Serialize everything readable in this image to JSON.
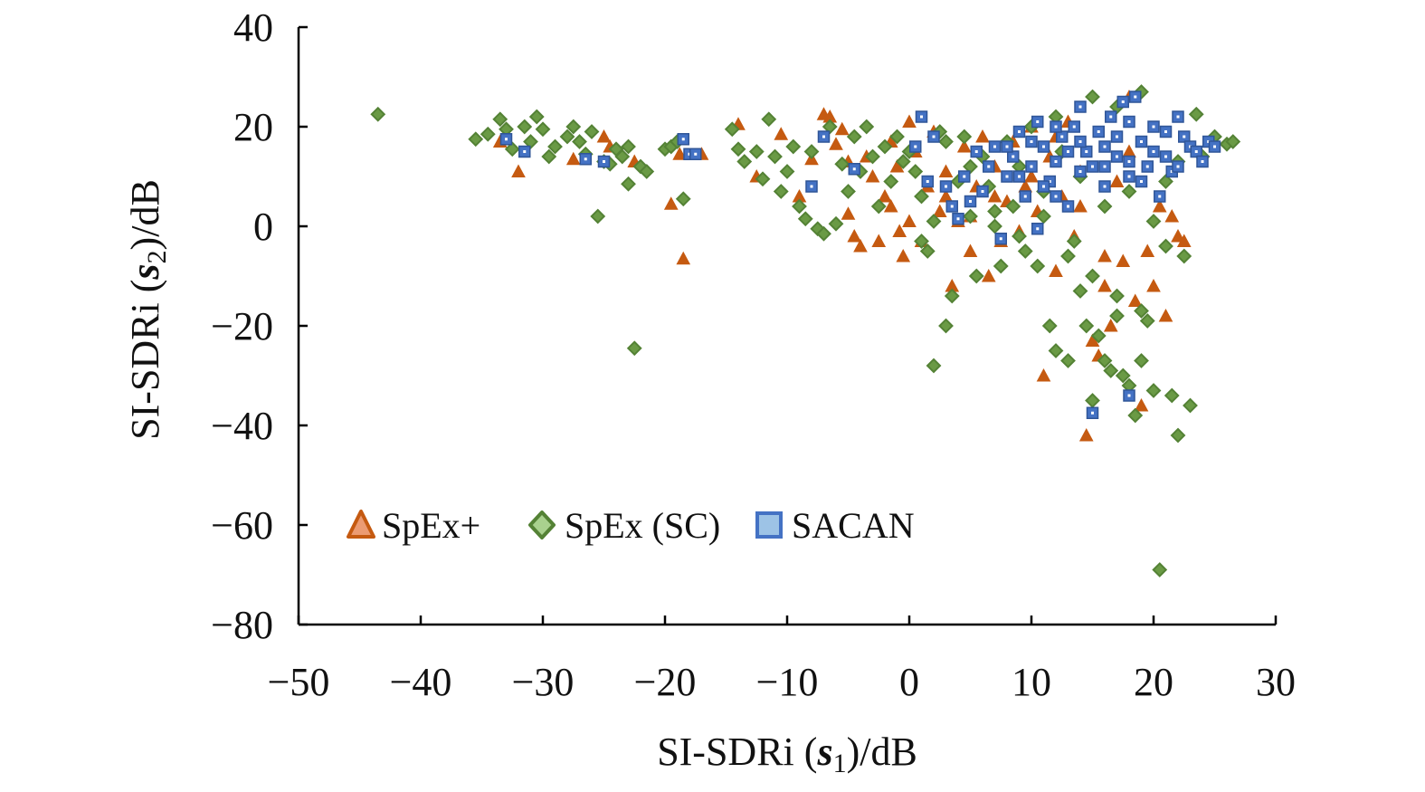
{
  "chart_data": {
    "type": "scatter",
    "xlabel": {
      "prefix": "SI-SDRi (",
      "var": "s",
      "sub": "1",
      "suffix": ")/dB"
    },
    "ylabel": {
      "prefix": "SI-SDRi (",
      "var": "s",
      "sub": "2",
      "suffix": ")/dB"
    },
    "xlim": [
      -50,
      30
    ],
    "ylim": [
      -80,
      40
    ],
    "xticks": [
      -50,
      -40,
      -30,
      -20,
      -10,
      0,
      10,
      20,
      30
    ],
    "yticks": [
      -80,
      -60,
      -40,
      -20,
      0,
      20,
      40
    ],
    "xtick_labels": [
      "−50",
      "−40",
      "−30",
      "−20",
      "−10",
      "0",
      "10",
      "20",
      "30"
    ],
    "ytick_labels": [
      "−80",
      "−60",
      "−40",
      "−20",
      "0",
      "20",
      "40"
    ],
    "grid": false,
    "legend_position": "lower-left",
    "series": [
      {
        "name": "SpEx+",
        "marker": "triangle",
        "color": "#c55a11",
        "points": [
          [
            -33.5,
            17
          ],
          [
            -32,
            11
          ],
          [
            -27.5,
            13.5
          ],
          [
            -25,
            18
          ],
          [
            -24.5,
            16
          ],
          [
            -22.5,
            13
          ],
          [
            -19.5,
            4.5
          ],
          [
            -18.8,
            14.5
          ],
          [
            -18.5,
            -6.5
          ],
          [
            -17,
            14.5
          ],
          [
            -14,
            20.5
          ],
          [
            -12.5,
            10
          ],
          [
            -10.5,
            18.5
          ],
          [
            -9,
            6
          ],
          [
            -8,
            13.5
          ],
          [
            -7,
            22.5
          ],
          [
            -6.5,
            22
          ],
          [
            -6,
            16.5
          ],
          [
            -5.5,
            19.5
          ],
          [
            -5,
            13
          ],
          [
            -5,
            2.5
          ],
          [
            -4.5,
            -2
          ],
          [
            -4,
            -4
          ],
          [
            -3.5,
            14
          ],
          [
            -3,
            10
          ],
          [
            -2.5,
            -3
          ],
          [
            -2,
            6
          ],
          [
            -1.5,
            17
          ],
          [
            -1.5,
            4
          ],
          [
            -1,
            12
          ],
          [
            -0.8,
            -1
          ],
          [
            -0.5,
            -6
          ],
          [
            0,
            21
          ],
          [
            0,
            1
          ],
          [
            0.5,
            15
          ],
          [
            1,
            -3
          ],
          [
            1.5,
            8
          ],
          [
            2,
            19
          ],
          [
            2.5,
            3
          ],
          [
            3,
            11
          ],
          [
            3.5,
            -12
          ],
          [
            4,
            1
          ],
          [
            4.5,
            16
          ],
          [
            5,
            -5
          ],
          [
            5.5,
            8
          ],
          [
            6,
            18
          ],
          [
            6.5,
            -10
          ],
          [
            7,
            12
          ],
          [
            7.5,
            -3
          ],
          [
            8,
            5
          ],
          [
            8.5,
            17
          ],
          [
            9,
            -1
          ],
          [
            9.5,
            8
          ],
          [
            10,
            20
          ],
          [
            10.5,
            3
          ],
          [
            11,
            -30
          ],
          [
            11.5,
            14
          ],
          [
            12,
            -9
          ],
          [
            12.5,
            6
          ],
          [
            13,
            21
          ],
          [
            13.5,
            -2
          ],
          [
            14,
            11
          ],
          [
            14.5,
            -42
          ],
          [
            15,
            -23
          ],
          [
            15.5,
            -26
          ],
          [
            16,
            -12
          ],
          [
            16.5,
            -20
          ],
          [
            17,
            9
          ],
          [
            17.5,
            -7
          ],
          [
            18,
            26
          ],
          [
            18.5,
            -15
          ],
          [
            19,
            -36
          ],
          [
            19.5,
            -5
          ],
          [
            20,
            -12
          ],
          [
            20.5,
            4
          ],
          [
            21,
            -18
          ],
          [
            21.5,
            2
          ],
          [
            22,
            -2
          ],
          [
            22.5,
            -3
          ],
          [
            16,
            -6
          ],
          [
            18,
            15
          ],
          [
            12,
            18
          ],
          [
            14,
            4
          ],
          [
            10,
            10
          ],
          [
            7,
            6
          ],
          [
            3,
            6
          ],
          [
            5,
            2
          ]
        ]
      },
      {
        "name": "SpEx (SC)",
        "marker": "diamond",
        "color": "#548235",
        "points": [
          [
            -43.5,
            22.5
          ],
          [
            -35.5,
            17.5
          ],
          [
            -34.5,
            18.5
          ],
          [
            -33.5,
            21.5
          ],
          [
            -33,
            19.5
          ],
          [
            -32.5,
            15.5
          ],
          [
            -31.5,
            20
          ],
          [
            -31,
            17
          ],
          [
            -30.5,
            22
          ],
          [
            -30,
            19.5
          ],
          [
            -29.5,
            14
          ],
          [
            -29,
            16
          ],
          [
            -28,
            18
          ],
          [
            -27.5,
            20
          ],
          [
            -27,
            17
          ],
          [
            -26.5,
            14.5
          ],
          [
            -26,
            19
          ],
          [
            -25.5,
            2
          ],
          [
            -25,
            13
          ],
          [
            -24.5,
            12.5
          ],
          [
            -24,
            15.5
          ],
          [
            -23.5,
            14
          ],
          [
            -23,
            16
          ],
          [
            -23,
            8.5
          ],
          [
            -22.5,
            -24.5
          ],
          [
            -22,
            12
          ],
          [
            -21.5,
            11
          ],
          [
            -20,
            15.5
          ],
          [
            -19.5,
            16
          ],
          [
            -19,
            17
          ],
          [
            -18.5,
            5.5
          ],
          [
            -14.5,
            19.5
          ],
          [
            -14,
            15.5
          ],
          [
            -13.5,
            13
          ],
          [
            -12.5,
            15
          ],
          [
            -12,
            9.5
          ],
          [
            -11.5,
            21.5
          ],
          [
            -11,
            14
          ],
          [
            -10.5,
            7
          ],
          [
            -10,
            11
          ],
          [
            -9.5,
            16
          ],
          [
            -9,
            4
          ],
          [
            -8.5,
            1.5
          ],
          [
            -8,
            15
          ],
          [
            -7.5,
            -0.5
          ],
          [
            -7,
            -1.5
          ],
          [
            -6.5,
            20
          ],
          [
            -6,
            0.5
          ],
          [
            -5.5,
            12.5
          ],
          [
            -5,
            7
          ],
          [
            -4.5,
            18
          ],
          [
            -4,
            11
          ],
          [
            -3.5,
            20
          ],
          [
            -3,
            14
          ],
          [
            -2.5,
            4
          ],
          [
            -2,
            16
          ],
          [
            -1.5,
            9
          ],
          [
            -1,
            18
          ],
          [
            -0.5,
            13
          ],
          [
            0,
            15
          ],
          [
            0.5,
            11
          ],
          [
            1,
            -3
          ],
          [
            1.5,
            -5
          ],
          [
            2,
            -28
          ],
          [
            2.5,
            19
          ],
          [
            3,
            -20
          ],
          [
            3.5,
            -14
          ],
          [
            4,
            9
          ],
          [
            4.5,
            18
          ],
          [
            5,
            2
          ],
          [
            5.5,
            -10
          ],
          [
            6,
            14
          ],
          [
            6.5,
            8
          ],
          [
            7,
            0
          ],
          [
            7.5,
            -8
          ],
          [
            8,
            17
          ],
          [
            8.5,
            4
          ],
          [
            9,
            12
          ],
          [
            9.5,
            -5
          ],
          [
            10,
            20
          ],
          [
            10.5,
            -8
          ],
          [
            11,
            7
          ],
          [
            11.5,
            -20
          ],
          [
            12,
            -25
          ],
          [
            12.5,
            15
          ],
          [
            13,
            -27
          ],
          [
            13.5,
            -3
          ],
          [
            14,
            -13
          ],
          [
            14.5,
            -20
          ],
          [
            15,
            -35
          ],
          [
            15.5,
            -22
          ],
          [
            16,
            -27
          ],
          [
            16.5,
            -29
          ],
          [
            17,
            -18
          ],
          [
            17.5,
            -30
          ],
          [
            18,
            -32
          ],
          [
            18.5,
            -38
          ],
          [
            19,
            -27
          ],
          [
            19.5,
            -19
          ],
          [
            20,
            -33
          ],
          [
            20.5,
            -69
          ],
          [
            21,
            9
          ],
          [
            21.5,
            -34
          ],
          [
            22,
            -42
          ],
          [
            22.5,
            -6
          ],
          [
            23,
            -36
          ],
          [
            23.5,
            22.5
          ],
          [
            24,
            14
          ],
          [
            25,
            18
          ],
          [
            26,
            16.5
          ],
          [
            26.5,
            17
          ],
          [
            15,
            26
          ],
          [
            19,
            27
          ],
          [
            17,
            24
          ],
          [
            12,
            22
          ],
          [
            14,
            10
          ],
          [
            16,
            4
          ],
          [
            18,
            7
          ],
          [
            20,
            1
          ],
          [
            11,
            2
          ],
          [
            13,
            -6
          ],
          [
            15,
            -10
          ],
          [
            17,
            -14
          ],
          [
            19,
            -17
          ],
          [
            21,
            -4
          ],
          [
            22,
            13
          ],
          [
            9,
            -2
          ],
          [
            7,
            3
          ],
          [
            5,
            12
          ],
          [
            3,
            17
          ],
          [
            2,
            1
          ],
          [
            1,
            6
          ]
        ]
      },
      {
        "name": "SACAN",
        "marker": "square",
        "color": "#4472c4",
        "points": [
          [
            -33,
            17.5
          ],
          [
            -31.5,
            15
          ],
          [
            -26.5,
            13.5
          ],
          [
            -25,
            13
          ],
          [
            -18.5,
            17.5
          ],
          [
            -18,
            14.5
          ],
          [
            -17.5,
            14.5
          ],
          [
            -8,
            8
          ],
          [
            -7,
            18
          ],
          [
            -4.5,
            11.5
          ],
          [
            0.5,
            16
          ],
          [
            1,
            22
          ],
          [
            1.5,
            9
          ],
          [
            2,
            18
          ],
          [
            3,
            8
          ],
          [
            3.5,
            4
          ],
          [
            4,
            1.5
          ],
          [
            4.5,
            10
          ],
          [
            5,
            5
          ],
          [
            5.5,
            15
          ],
          [
            6,
            7
          ],
          [
            6.5,
            12
          ],
          [
            7,
            16
          ],
          [
            7.5,
            -2.5
          ],
          [
            8,
            10
          ],
          [
            8.5,
            14
          ],
          [
            9,
            19
          ],
          [
            9.5,
            6
          ],
          [
            10,
            12
          ],
          [
            10.5,
            21
          ],
          [
            10.5,
            -0.5
          ],
          [
            11,
            16
          ],
          [
            11.5,
            9
          ],
          [
            12,
            13
          ],
          [
            12.5,
            18
          ],
          [
            13,
            4
          ],
          [
            13.5,
            20
          ],
          [
            14,
            11
          ],
          [
            14.5,
            15
          ],
          [
            15,
            -37.5
          ],
          [
            15.5,
            19
          ],
          [
            16,
            8
          ],
          [
            16.5,
            22
          ],
          [
            17,
            14
          ],
          [
            17.5,
            25
          ],
          [
            18,
            -34
          ],
          [
            18,
            10
          ],
          [
            18.5,
            26
          ],
          [
            19,
            17
          ],
          [
            19.5,
            12
          ],
          [
            20,
            20
          ],
          [
            20.5,
            6
          ],
          [
            21,
            14
          ],
          [
            21.5,
            11
          ],
          [
            22,
            22
          ],
          [
            22.5,
            18
          ],
          [
            23,
            16
          ],
          [
            23.5,
            15
          ],
          [
            24,
            13
          ],
          [
            24.5,
            17
          ],
          [
            25,
            16
          ],
          [
            9,
            10
          ],
          [
            11,
            8
          ],
          [
            13,
            15
          ],
          [
            15,
            12
          ],
          [
            17,
            18
          ],
          [
            19,
            9
          ],
          [
            21,
            19
          ],
          [
            12,
            6
          ],
          [
            14,
            24
          ],
          [
            16,
            16
          ],
          [
            18,
            13
          ],
          [
            20,
            15
          ],
          [
            10,
            17
          ],
          [
            12,
            20
          ],
          [
            14,
            17
          ],
          [
            16,
            12
          ],
          [
            18,
            21
          ],
          [
            8,
            16
          ],
          [
            22,
            12
          ]
        ]
      }
    ]
  }
}
